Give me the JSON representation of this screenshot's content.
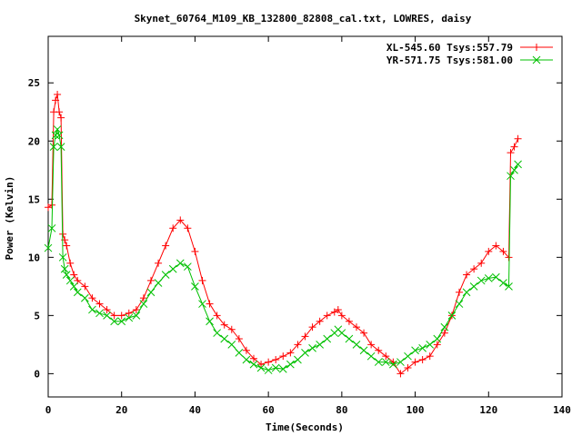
{
  "chart_data": {
    "type": "line",
    "title": "Skynet_60764_M109_KB_132800_82808_cal.txt, LOWRES, daisy",
    "xlabel": "Time(Seconds)",
    "ylabel": "Power (Kelvin)",
    "xlim": [
      0,
      140
    ],
    "ylim": [
      -2,
      29
    ],
    "xticks": [
      0,
      20,
      40,
      60,
      80,
      100,
      120,
      140
    ],
    "yticks": [
      0,
      5,
      10,
      15,
      20,
      25
    ],
    "grid": false,
    "legend_position": "top-right",
    "series": [
      {
        "name": "XL-545.60 Tsys:557.79",
        "color": "#ff0000",
        "marker": "+",
        "x": [
          0,
          1,
          1.5,
          2,
          2.5,
          3,
          3.5,
          4,
          4.5,
          5,
          6,
          7,
          8,
          10,
          12,
          14,
          16,
          18,
          20,
          22,
          24,
          26,
          28,
          30,
          32,
          34,
          36,
          38,
          40,
          42,
          44,
          46,
          48,
          50,
          52,
          54,
          56,
          58,
          60,
          62,
          64,
          66,
          68,
          70,
          72,
          74,
          76,
          78,
          79,
          80,
          82,
          84,
          86,
          88,
          90,
          92,
          94,
          96,
          98,
          100,
          102,
          104,
          106,
          108,
          110,
          112,
          114,
          116,
          118,
          120,
          122,
          124,
          125.5,
          126,
          127,
          128
        ],
        "y": [
          14.3,
          14.5,
          22.5,
          23.5,
          24,
          22.5,
          22,
          12,
          11.5,
          11,
          9.5,
          8.5,
          8,
          7.5,
          6.5,
          6,
          5.5,
          5,
          5,
          5.2,
          5.5,
          6.5,
          8,
          9.5,
          11,
          12.5,
          13.2,
          12.5,
          10.5,
          8,
          6,
          5,
          4.2,
          3.8,
          3,
          2,
          1.3,
          0.8,
          1,
          1.2,
          1.5,
          1.8,
          2.5,
          3.2,
          4,
          4.5,
          5,
          5.3,
          5.5,
          5,
          4.5,
          4,
          3.5,
          2.5,
          2,
          1.5,
          1,
          0,
          0.5,
          1,
          1.2,
          1.5,
          2.5,
          3.5,
          5,
          7,
          8.5,
          9,
          9.5,
          10.5,
          11,
          10.5,
          10,
          19,
          19.5,
          20.2
        ]
      },
      {
        "name": "YR-571.75 Tsys:581.00",
        "color": "#00c000",
        "marker": "x",
        "x": [
          0,
          1,
          1.5,
          2,
          2.5,
          3,
          3.5,
          4,
          4.5,
          5,
          6,
          7,
          8,
          10,
          12,
          14,
          16,
          18,
          20,
          22,
          24,
          26,
          28,
          30,
          32,
          34,
          36,
          38,
          40,
          42,
          44,
          46,
          48,
          50,
          52,
          54,
          56,
          58,
          60,
          62,
          64,
          66,
          68,
          70,
          72,
          74,
          76,
          78,
          79,
          80,
          82,
          84,
          86,
          88,
          90,
          92,
          94,
          96,
          98,
          100,
          102,
          104,
          106,
          108,
          110,
          112,
          114,
          116,
          118,
          120,
          122,
          124,
          125.5,
          126,
          127,
          128
        ],
        "y": [
          10.8,
          12.5,
          19.5,
          20.5,
          21,
          20.5,
          19.5,
          10,
          9,
          8.5,
          8,
          7.5,
          7,
          6.5,
          5.5,
          5.2,
          5,
          4.5,
          4.5,
          4.8,
          5,
          6,
          7,
          7.8,
          8.5,
          9,
          9.5,
          9.2,
          7.5,
          6,
          4.5,
          3.5,
          3,
          2.5,
          1.8,
          1.2,
          0.8,
          0.5,
          0.3,
          0.5,
          0.4,
          0.8,
          1.2,
          1.8,
          2.2,
          2.5,
          3,
          3.5,
          3.8,
          3.5,
          3,
          2.5,
          2,
          1.5,
          1,
          1,
          0.8,
          1,
          1.5,
          2,
          2.2,
          2.5,
          3,
          4,
          5,
          6,
          7,
          7.5,
          8,
          8.2,
          8.3,
          7.8,
          7.5,
          17,
          17.5,
          18
        ]
      }
    ]
  }
}
